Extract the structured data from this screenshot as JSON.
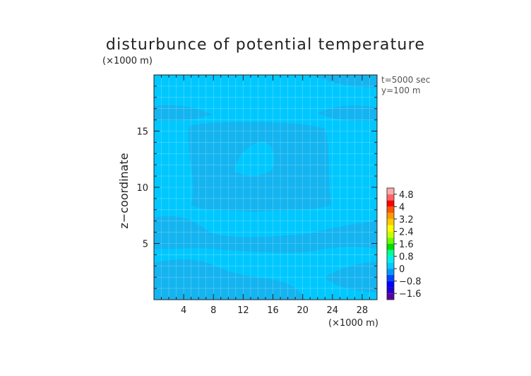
{
  "chart_data": {
    "type": "heatmap",
    "title": "disturbunce of potential temperature",
    "xlabel": "",
    "ylabel": "z−coordinate",
    "x_unit": "(×1000 m)",
    "y_unit": "(×1000 m)",
    "xlim": [
      0,
      30
    ],
    "ylim": [
      0,
      20
    ],
    "x_ticks": [
      4,
      8,
      12,
      16,
      20,
      24,
      28
    ],
    "x_tick_labels": [
      "4",
      "8",
      "12",
      "16",
      "20",
      "24",
      "28"
    ],
    "y_ticks": [
      5,
      10,
      15
    ],
    "y_tick_labels": [
      "5",
      "10",
      "15"
    ],
    "annotations": [
      "t=5000 sec",
      "y=100 m"
    ],
    "grid": true,
    "colorbar": {
      "levels": [
        -2.0,
        -1.6,
        -1.2,
        -0.8,
        -0.4,
        0,
        0.4,
        0.8,
        1.2,
        1.6,
        2.0,
        2.4,
        2.8,
        3.2,
        3.6,
        4.0,
        4.4,
        4.8,
        5.2
      ],
      "tick_values": [
        -1.6,
        -0.8,
        0,
        0.8,
        1.6,
        2.4,
        3.2,
        4,
        4.8
      ],
      "tick_labels": [
        "−1.6",
        "−0.8",
        "0",
        "0.8",
        "1.6",
        "2.4",
        "3.2",
        "4",
        "4.8"
      ],
      "colors": [
        "#5a00a0",
        "#2200cc",
        "#0000ff",
        "#0044ff",
        "#0099ff",
        "#00ccff",
        "#00eeee",
        "#00ff99",
        "#00dd00",
        "#66ff00",
        "#ccff00",
        "#ffff00",
        "#ffcc00",
        "#ff9900",
        "#ff5500",
        "#ff0000",
        "#ff6666",
        "#ffaaaa"
      ]
    },
    "field": {
      "background_value": 0.2,
      "background_color": "#00c8ff",
      "region_value": 0.0,
      "region_color": "#14b4f0"
    }
  }
}
